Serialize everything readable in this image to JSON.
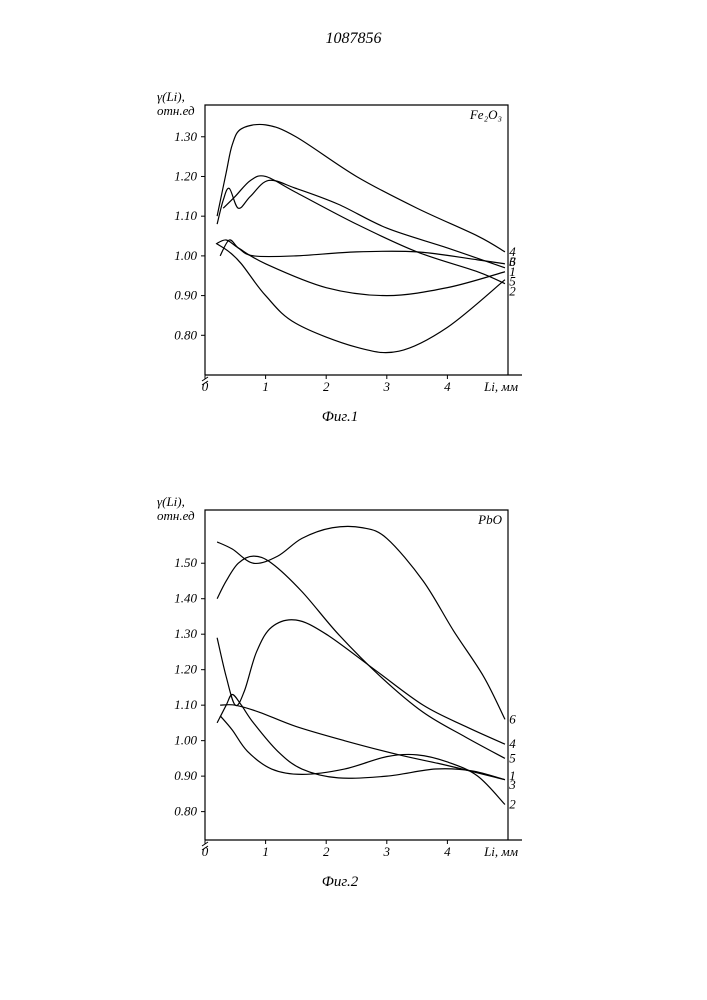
{
  "page_number": "1087856",
  "chart1": {
    "type": "line",
    "caption": "Фиг.1",
    "annotation": "Fe₂O₃",
    "y_label_top": "γ(Li),",
    "y_label_bottom": "отн.ед",
    "x_label": "Li, мм",
    "x_ticks": [
      0,
      1,
      2,
      3,
      4
    ],
    "y_ticks": [
      0.8,
      0.9,
      1.0,
      1.1,
      1.2,
      1.3
    ],
    "xlim": [
      0,
      5
    ],
    "ylim": [
      0.7,
      1.38
    ],
    "background_color": "#ffffff",
    "stroke_color": "#000000",
    "series": [
      {
        "label": "1",
        "points": [
          [
            0.18,
            1.03
          ],
          [
            0.35,
            1.04
          ],
          [
            0.55,
            1.02
          ],
          [
            1.0,
            0.98
          ],
          [
            2.0,
            0.92
          ],
          [
            3.0,
            0.9
          ],
          [
            4.0,
            0.92
          ],
          [
            4.95,
            0.96
          ]
        ]
      },
      {
        "label": "2",
        "points": [
          [
            0.2,
            1.03
          ],
          [
            0.4,
            1.01
          ],
          [
            0.6,
            0.98
          ],
          [
            1.0,
            0.9
          ],
          [
            1.5,
            0.83
          ],
          [
            2.5,
            0.77
          ],
          [
            3.2,
            0.76
          ],
          [
            4.0,
            0.82
          ],
          [
            4.95,
            0.94
          ]
        ]
      },
      {
        "label": "3",
        "points": [
          [
            0.25,
            1.0
          ],
          [
            0.4,
            1.04
          ],
          [
            0.55,
            1.02
          ],
          [
            0.8,
            1.0
          ],
          [
            1.5,
            1.0
          ],
          [
            2.5,
            1.01
          ],
          [
            3.5,
            1.01
          ],
          [
            4.5,
            0.99
          ],
          [
            4.95,
            0.98
          ]
        ]
      },
      {
        "label": "4",
        "points": [
          [
            0.2,
            1.1
          ],
          [
            0.35,
            1.21
          ],
          [
            0.45,
            1.28
          ],
          [
            0.6,
            1.32
          ],
          [
            1.0,
            1.33
          ],
          [
            1.5,
            1.3
          ],
          [
            2.5,
            1.2
          ],
          [
            3.5,
            1.12
          ],
          [
            4.5,
            1.05
          ],
          [
            4.95,
            1.01
          ]
        ]
      },
      {
        "label": "5",
        "points": [
          [
            0.2,
            1.08
          ],
          [
            0.3,
            1.14
          ],
          [
            0.4,
            1.17
          ],
          [
            0.55,
            1.12
          ],
          [
            0.75,
            1.15
          ],
          [
            1.05,
            1.19
          ],
          [
            1.5,
            1.17
          ],
          [
            2.2,
            1.13
          ],
          [
            3.0,
            1.07
          ],
          [
            4.0,
            1.02
          ],
          [
            4.95,
            0.97
          ]
        ]
      },
      {
        "label": "6",
        "points": [
          [
            0.3,
            1.12
          ],
          [
            0.5,
            1.15
          ],
          [
            0.75,
            1.19
          ],
          [
            1.0,
            1.2
          ],
          [
            1.5,
            1.16
          ],
          [
            2.5,
            1.08
          ],
          [
            3.5,
            1.01
          ],
          [
            4.5,
            0.96
          ],
          [
            4.95,
            0.93
          ]
        ]
      }
    ],
    "curve_end_labels": [
      {
        "label": "4",
        "pos": [
          5.02,
          1.01
        ]
      },
      {
        "label": "3",
        "pos": [
          5.02,
          0.985
        ]
      },
      {
        "label": "1",
        "pos": [
          5.02,
          0.96
        ]
      },
      {
        "label": "5",
        "pos": [
          5.02,
          0.935
        ]
      },
      {
        "label": "2",
        "pos": [
          5.02,
          0.91
        ]
      },
      {
        "label": "6",
        "pos": [
          5.02,
          0.985
        ]
      }
    ],
    "title_fontsize": 13,
    "label_fontsize": 13
  },
  "chart2": {
    "type": "line",
    "caption": "Фиг.2",
    "annotation": "PbO",
    "y_label_top": "γ(Li),",
    "y_label_bottom": "отн.ед",
    "x_label": "Li, мм",
    "x_ticks": [
      0,
      1,
      2,
      3,
      4
    ],
    "y_ticks": [
      0.8,
      0.9,
      1.0,
      1.1,
      1.2,
      1.3,
      1.4,
      1.5
    ],
    "xlim": [
      0,
      5
    ],
    "ylim": [
      0.72,
      1.65
    ],
    "background_color": "#ffffff",
    "stroke_color": "#000000",
    "series": [
      {
        "label": "1",
        "points": [
          [
            0.2,
            1.05
          ],
          [
            0.35,
            1.1
          ],
          [
            0.45,
            1.13
          ],
          [
            0.6,
            1.1
          ],
          [
            0.8,
            1.05
          ],
          [
            1.2,
            0.97
          ],
          [
            1.6,
            0.92
          ],
          [
            2.2,
            0.895
          ],
          [
            3.0,
            0.9
          ],
          [
            3.8,
            0.92
          ],
          [
            4.4,
            0.915
          ],
          [
            4.95,
            0.89
          ]
        ]
      },
      {
        "label": "2",
        "points": [
          [
            0.25,
            1.07
          ],
          [
            0.45,
            1.03
          ],
          [
            0.7,
            0.97
          ],
          [
            1.1,
            0.92
          ],
          [
            1.6,
            0.905
          ],
          [
            2.3,
            0.92
          ],
          [
            3.0,
            0.955
          ],
          [
            3.5,
            0.96
          ],
          [
            4.0,
            0.94
          ],
          [
            4.5,
            0.9
          ],
          [
            4.95,
            0.82
          ]
        ]
      },
      {
        "label": "3",
        "points": [
          [
            0.25,
            1.1
          ],
          [
            0.5,
            1.1
          ],
          [
            0.9,
            1.08
          ],
          [
            1.5,
            1.04
          ],
          [
            2.3,
            1.0
          ],
          [
            3.2,
            0.96
          ],
          [
            4.0,
            0.93
          ],
          [
            4.95,
            0.89
          ]
        ]
      },
      {
        "label": "4",
        "points": [
          [
            0.2,
            1.29
          ],
          [
            0.35,
            1.18
          ],
          [
            0.5,
            1.1
          ],
          [
            0.65,
            1.14
          ],
          [
            0.85,
            1.25
          ],
          [
            1.1,
            1.32
          ],
          [
            1.5,
            1.34
          ],
          [
            2.0,
            1.3
          ],
          [
            2.8,
            1.2
          ],
          [
            3.6,
            1.1
          ],
          [
            4.3,
            1.04
          ],
          [
            4.95,
            0.99
          ]
        ]
      },
      {
        "label": "5",
        "points": [
          [
            0.2,
            1.4
          ],
          [
            0.35,
            1.45
          ],
          [
            0.55,
            1.5
          ],
          [
            0.8,
            1.52
          ],
          [
            1.1,
            1.5
          ],
          [
            1.6,
            1.42
          ],
          [
            2.2,
            1.3
          ],
          [
            2.9,
            1.18
          ],
          [
            3.6,
            1.08
          ],
          [
            4.3,
            1.01
          ],
          [
            4.95,
            0.95
          ]
        ]
      },
      {
        "label": "6",
        "points": [
          [
            0.2,
            1.56
          ],
          [
            0.45,
            1.54
          ],
          [
            0.8,
            1.5
          ],
          [
            1.2,
            1.52
          ],
          [
            1.6,
            1.57
          ],
          [
            2.1,
            1.6
          ],
          [
            2.6,
            1.6
          ],
          [
            3.0,
            1.57
          ],
          [
            3.6,
            1.45
          ],
          [
            4.1,
            1.31
          ],
          [
            4.6,
            1.18
          ],
          [
            4.95,
            1.06
          ]
        ]
      }
    ],
    "curve_end_labels": [
      {
        "label": "6",
        "pos": [
          5.02,
          1.06
        ]
      },
      {
        "label": "4",
        "pos": [
          5.02,
          0.99
        ]
      },
      {
        "label": "5",
        "pos": [
          5.02,
          0.95
        ]
      },
      {
        "label": "1",
        "pos": [
          5.02,
          0.9
        ]
      },
      {
        "label": "3",
        "pos": [
          5.02,
          0.875
        ]
      },
      {
        "label": "2",
        "pos": [
          5.02,
          0.82
        ]
      }
    ],
    "title_fontsize": 13,
    "label_fontsize": 13
  }
}
